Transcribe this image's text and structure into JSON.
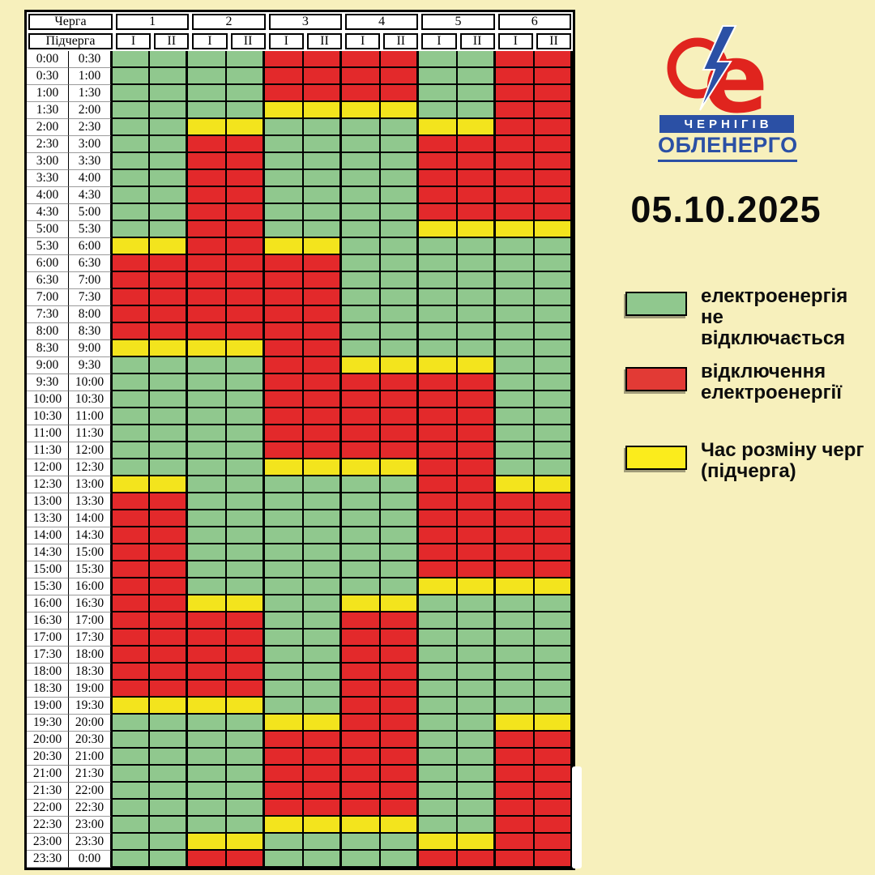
{
  "page": {
    "background": "#F7F0BC",
    "date": "05.10.2025"
  },
  "logo": {
    "top_text": "ЧЕРНІГІВ",
    "bottom_text": "ОБЛЕНЕРГО",
    "red": "#E0241E",
    "blue": "#2B50A5",
    "icon": "lightning-bolt-icon"
  },
  "legend": {
    "items": [
      {
        "key": "G",
        "color": "#90C88E",
        "line1": "електроенергія",
        "line2": "не відключається"
      },
      {
        "key": "R",
        "color": "#E23A35",
        "line1": "відключення",
        "line2": "електроенергії"
      },
      {
        "key": "Y",
        "color": "#FBEC1C",
        "line1": "Час розміну черг",
        "line2": "(підчерга)"
      }
    ]
  },
  "schedule": {
    "queue_label": "Черга",
    "subqueue_label": "Підчерга",
    "queues": [
      "1",
      "2",
      "3",
      "4",
      "5",
      "6"
    ],
    "subqueues": [
      "І",
      "ІІ"
    ],
    "colors": {
      "G": "#90C88E",
      "R": "#E3292B",
      "Y": "#F3E41D"
    },
    "rows": [
      {
        "from": "0:00",
        "to": "0:30",
        "cells": "GGGGRRRRGGRR"
      },
      {
        "from": "0:30",
        "to": "1:00",
        "cells": "GGGGRRRRGGRR"
      },
      {
        "from": "1:00",
        "to": "1:30",
        "cells": "GGGGRRRRGGRR"
      },
      {
        "from": "1:30",
        "to": "2:00",
        "cells": "GGGGYYYYGGRR"
      },
      {
        "from": "2:00",
        "to": "2:30",
        "cells": "GGYYGGGGYYRR"
      },
      {
        "from": "2:30",
        "to": "3:00",
        "cells": "GGRRGGGGRRRR"
      },
      {
        "from": "3:00",
        "to": "3:30",
        "cells": "GGRRGGGGRRRR"
      },
      {
        "from": "3:30",
        "to": "4:00",
        "cells": "GGRRGGGGRRRR"
      },
      {
        "from": "4:00",
        "to": "4:30",
        "cells": "GGRRGGGGRRRR"
      },
      {
        "from": "4:30",
        "to": "5:00",
        "cells": "GGRRGGGGRRRR"
      },
      {
        "from": "5:00",
        "to": "5:30",
        "cells": "GGRRGGGGYYYY"
      },
      {
        "from": "5:30",
        "to": "6:00",
        "cells": "YYRRYYGGGGGG"
      },
      {
        "from": "6:00",
        "to": "6:30",
        "cells": "RRRRRRGGGGGG"
      },
      {
        "from": "6:30",
        "to": "7:00",
        "cells": "RRRRRRGGGGGG"
      },
      {
        "from": "7:00",
        "to": "7:30",
        "cells": "RRRRRRGGGGGG"
      },
      {
        "from": "7:30",
        "to": "8:00",
        "cells": "RRRRRRGGGGGG"
      },
      {
        "from": "8:00",
        "to": "8:30",
        "cells": "RRRRRRGGGGGG"
      },
      {
        "from": "8:30",
        "to": "9:00",
        "cells": "YYYYRRGGGGGG"
      },
      {
        "from": "9:00",
        "to": "9:30",
        "cells": "GGGGRRYYYYGG"
      },
      {
        "from": "9:30",
        "to": "10:00",
        "cells": "GGGGRRRRRRGG"
      },
      {
        "from": "10:00",
        "to": "10:30",
        "cells": "GGGGRRRRRRGG"
      },
      {
        "from": "10:30",
        "to": "11:00",
        "cells": "GGGGRRRRRRGG"
      },
      {
        "from": "11:00",
        "to": "11:30",
        "cells": "GGGGRRRRRRGG"
      },
      {
        "from": "11:30",
        "to": "12:00",
        "cells": "GGGGRRRRRRGG"
      },
      {
        "from": "12:00",
        "to": "12:30",
        "cells": "GGGGYYYYRRGG"
      },
      {
        "from": "12:30",
        "to": "13:00",
        "cells": "YYGGGGGGRRYY"
      },
      {
        "from": "13:00",
        "to": "13:30",
        "cells": "RRGGGGGGRRRR"
      },
      {
        "from": "13:30",
        "to": "14:00",
        "cells": "RRGGGGGGRRRR"
      },
      {
        "from": "14:00",
        "to": "14:30",
        "cells": "RRGGGGGGRRRR"
      },
      {
        "from": "14:30",
        "to": "15:00",
        "cells": "RRGGGGGGRRRR"
      },
      {
        "from": "15:00",
        "to": "15:30",
        "cells": "RRGGGGGGRRRR"
      },
      {
        "from": "15:30",
        "to": "16:00",
        "cells": "RRGGGGGGYYYY"
      },
      {
        "from": "16:00",
        "to": "16:30",
        "cells": "RRYYGGYYGGGG"
      },
      {
        "from": "16:30",
        "to": "17:00",
        "cells": "RRRRGGRRGGGG"
      },
      {
        "from": "17:00",
        "to": "17:30",
        "cells": "RRRRGGRRGGGG"
      },
      {
        "from": "17:30",
        "to": "18:00",
        "cells": "RRRRGGRRGGGG"
      },
      {
        "from": "18:00",
        "to": "18:30",
        "cells": "RRRRGGRRGGGG"
      },
      {
        "from": "18:30",
        "to": "19:00",
        "cells": "RRRRGGRRGGGG"
      },
      {
        "from": "19:00",
        "to": "19:30",
        "cells": "YYYYGGRRGGGG"
      },
      {
        "from": "19:30",
        "to": "20:00",
        "cells": "GGGGYYRRGGYY"
      },
      {
        "from": "20:00",
        "to": "20:30",
        "cells": "GGGGRRRRGGRR"
      },
      {
        "from": "20:30",
        "to": "21:00",
        "cells": "GGGGRRRRGGRR"
      },
      {
        "from": "21:00",
        "to": "21:30",
        "cells": "GGGGRRRRGGRR"
      },
      {
        "from": "21:30",
        "to": "22:00",
        "cells": "GGGGRRRRGGRR"
      },
      {
        "from": "22:00",
        "to": "22:30",
        "cells": "GGGGRRRRGGRR"
      },
      {
        "from": "22:30",
        "to": "23:00",
        "cells": "GGGGYYYYGGRR"
      },
      {
        "from": "23:00",
        "to": "23:30",
        "cells": "GGYYGGGGYYRR"
      },
      {
        "from": "23:30",
        "to": "0:00",
        "cells": "GGRRGGGGRRRR"
      }
    ]
  }
}
